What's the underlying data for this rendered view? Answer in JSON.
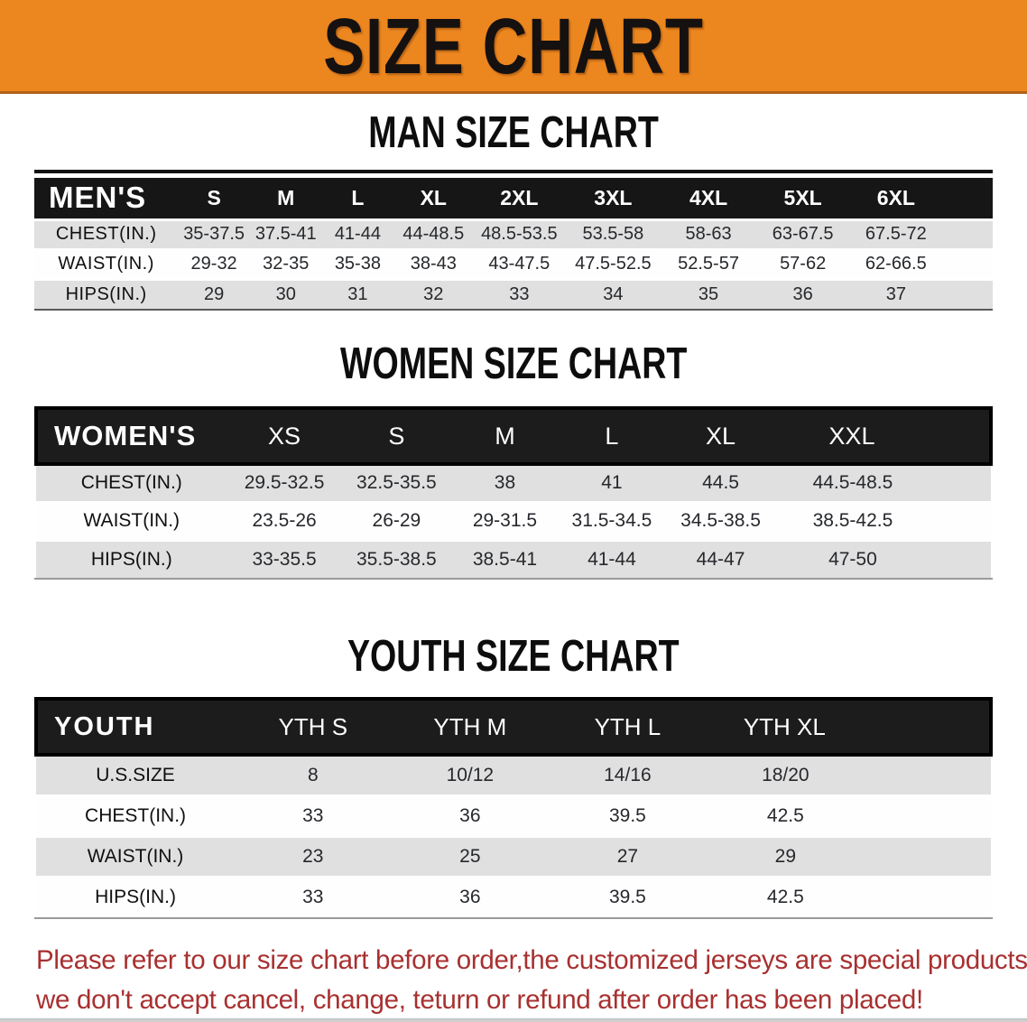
{
  "banner": {
    "title": "SIZE CHART"
  },
  "colors": {
    "banner_bg": "#EC861F",
    "banner_edge": "#B3601A",
    "header_bar": "#1C1C1C",
    "row_shade": "#E0E0E0",
    "disclaimer_text": "#A83030"
  },
  "sections": [
    {
      "heading": "MAN SIZE CHART",
      "header_label": "MEN'S",
      "columns": [
        "S",
        "M",
        "L",
        "XL",
        "2XL",
        "3XL",
        "4XL",
        "5XL",
        "6XL"
      ],
      "rows": [
        {
          "label": "CHEST(IN.)",
          "values": [
            "35-37.5",
            "37.5-41",
            "41-44",
            "44-48.5",
            "48.5-53.5",
            "53.5-58",
            "58-63",
            "63-67.5",
            "67.5-72"
          ]
        },
        {
          "label": "WAIST(IN.)",
          "values": [
            "29-32",
            "32-35",
            "35-38",
            "38-43",
            "43-47.5",
            "47.5-52.5",
            "52.5-57",
            "57-62",
            "62-66.5"
          ]
        },
        {
          "label": "HIPS(IN.)",
          "values": [
            "29",
            "30",
            "31",
            "32",
            "33",
            "34",
            "35",
            "36",
            "37"
          ]
        }
      ]
    },
    {
      "heading": "WOMEN SIZE CHART",
      "header_label": "WOMEN'S",
      "columns": [
        "XS",
        "S",
        "M",
        "L",
        "XL",
        "XXL"
      ],
      "rows": [
        {
          "label": "CHEST(IN.)",
          "values": [
            "29.5-32.5",
            "32.5-35.5",
            "38",
            "41",
            "44.5",
            "44.5-48.5"
          ]
        },
        {
          "label": "WAIST(IN.)",
          "values": [
            "23.5-26",
            "26-29",
            "29-31.5",
            "31.5-34.5",
            "34.5-38.5",
            "38.5-42.5"
          ]
        },
        {
          "label": "HIPS(IN.)",
          "values": [
            "33-35.5",
            "35.5-38.5",
            "38.5-41",
            "41-44",
            "44-47",
            "47-50"
          ]
        }
      ]
    },
    {
      "heading": "YOUTH SIZE CHART",
      "header_label": "YOUTH",
      "columns": [
        "YTH S",
        "YTH M",
        "YTH L",
        "YTH XL"
      ],
      "rows": [
        {
          "label": "U.S.SIZE",
          "values": [
            "8",
            "10/12",
            "14/16",
            "18/20"
          ]
        },
        {
          "label": "CHEST(IN.)",
          "values": [
            "33",
            "36",
            "39.5",
            "42.5"
          ]
        },
        {
          "label": "WAIST(IN.)",
          "values": [
            "23",
            "25",
            "27",
            "29"
          ]
        },
        {
          "label": "HIPS(IN.)",
          "values": [
            "33",
            "36",
            "39.5",
            "42.5"
          ]
        }
      ]
    }
  ],
  "disclaimer": {
    "line1": "Please refer to our size chart before order,the customized jerseys are special products,",
    "line2": "we don't accept cancel, change, teturn or refund after order has been placed!"
  }
}
